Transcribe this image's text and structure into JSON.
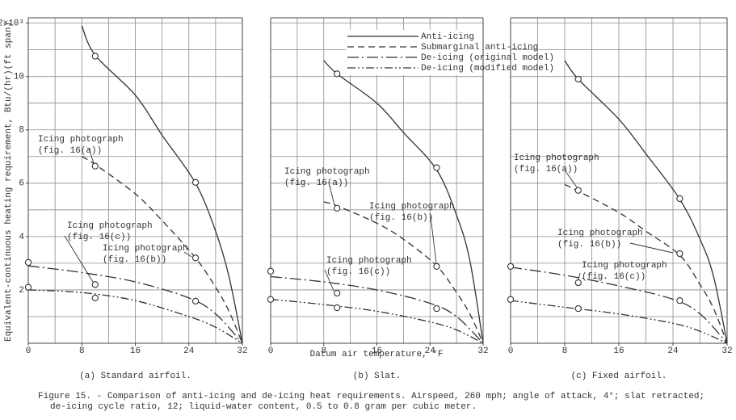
{
  "figure": {
    "y_label": "Equivalent-continuous heating requirement, Btu/(hr)(ft span)",
    "x_label": "Datum air temperature, °F",
    "caption": [
      "Figure 15. - Comparison of anti-icing and de-icing heat requirements.  Airspeed, 260 mph; angle of attack, 4°; slat retracted;",
      "de-icing cycle ratio, 12; liquid-water content, 0.5 to 0.8 gram per cubic meter."
    ]
  },
  "chart_data": [
    {
      "type": "line",
      "subtitle": "(a) Standard airfoil.",
      "xlim": [
        0,
        32
      ],
      "xticks": [
        0,
        8,
        16,
        24,
        32
      ],
      "xgrid": [
        4,
        8,
        12,
        16,
        20,
        24,
        28
      ],
      "ylim": [
        0,
        12.2
      ],
      "yticks": [
        2,
        4,
        6,
        8,
        10,
        {
          "value": 12,
          "label": "12×10³"
        }
      ],
      "ygrid": [
        1,
        2,
        3,
        4,
        5,
        6,
        7,
        8,
        9,
        10,
        11,
        12
      ],
      "series": [
        {
          "style": "solid",
          "x": [
            8,
            10,
            16,
            20,
            25,
            28,
            30,
            32
          ],
          "values": [
            11.9,
            10.8,
            9.3,
            7.8,
            6.0,
            4.2,
            2.5,
            0
          ]
        },
        {
          "style": "dashed",
          "x": [
            8,
            10,
            16,
            20,
            25,
            28,
            30,
            32
          ],
          "values": [
            7.0,
            6.7,
            5.6,
            4.6,
            3.2,
            2.1,
            1.2,
            0
          ]
        },
        {
          "style": "dash-dot",
          "x": [
            0,
            8,
            16,
            24,
            28,
            32
          ],
          "values": [
            2.9,
            2.65,
            2.3,
            1.7,
            1.1,
            0
          ]
        },
        {
          "style": "dash-dot-dot",
          "x": [
            0,
            8,
            16,
            24,
            28,
            32
          ],
          "values": [
            2.0,
            1.9,
            1.6,
            1.0,
            0.6,
            0
          ]
        },
        {
          "marker": "circle",
          "x": [
            10,
            25,
            10,
            25,
            0,
            10,
            25,
            0,
            10
          ],
          "values": [
            10.76,
            6.03,
            6.64,
            3.2,
            3.03,
            2.2,
            1.58,
            2.1,
            1.7
          ]
        }
      ],
      "annotations": [
        {
          "lines": [
            "Icing photograph",
            "(fig. 16(a))"
          ]
        },
        {
          "lines": [
            "Icing photograph",
            "(fig. 16(c))"
          ]
        },
        {
          "lines": [
            "Icing photograph",
            "(fig. 16(b))"
          ]
        }
      ]
    },
    {
      "type": "line",
      "subtitle": "(b) Slat.",
      "xlim": [
        0,
        32
      ],
      "xticks": [
        0,
        8,
        16,
        24,
        32
      ],
      "xgrid": [
        4,
        8,
        12,
        16,
        20,
        24,
        28
      ],
      "ylim": [
        0,
        12.2
      ],
      "ygrid": [
        1,
        2,
        3,
        4,
        5,
        6,
        7,
        8,
        9,
        10,
        11,
        12
      ],
      "legend": "top-right",
      "series": [
        {
          "name": "Anti-icing",
          "style": "solid",
          "x": [
            8,
            10,
            16,
            20,
            25,
            28,
            30,
            32
          ],
          "values": [
            10.6,
            10.1,
            9.0,
            7.9,
            6.5,
            4.8,
            3.1,
            0
          ]
        },
        {
          "name": "Submarginal anti-icing",
          "style": "dashed",
          "x": [
            8,
            10,
            16,
            20,
            25,
            28,
            30,
            32
          ],
          "values": [
            5.3,
            5.15,
            4.5,
            3.9,
            2.9,
            1.9,
            1.1,
            0
          ]
        },
        {
          "name": "De-icing (original model)",
          "style": "dash-dot",
          "x": [
            0,
            8,
            16,
            24,
            28,
            32
          ],
          "values": [
            2.5,
            2.3,
            2.0,
            1.5,
            1.0,
            0
          ]
        },
        {
          "name": "De-icing (modified model)",
          "style": "dash-dot-dot",
          "x": [
            0,
            8,
            16,
            24,
            28,
            32
          ],
          "values": [
            1.65,
            1.45,
            1.2,
            0.8,
            0.5,
            0
          ]
        },
        {
          "marker": "circle",
          "x": [
            10,
            25,
            10,
            25,
            0,
            10,
            0,
            10,
            25
          ],
          "values": [
            10.1,
            6.58,
            5.06,
            2.88,
            2.7,
            1.88,
            1.64,
            1.33,
            1.3
          ]
        }
      ],
      "annotations": [
        {
          "lines": [
            "Icing photograph",
            "(fig. 16(a))"
          ]
        },
        {
          "lines": [
            "Icing photograph",
            "(fig. 16(b))"
          ]
        },
        {
          "lines": [
            "Icing photograph",
            "(fig. 16(c))"
          ]
        }
      ]
    },
    {
      "type": "line",
      "subtitle": "(c) Fixed airfoil.",
      "xlim": [
        0,
        32
      ],
      "xticks": [
        0,
        8,
        16,
        24,
        32
      ],
      "xgrid": [
        4,
        8,
        12,
        16,
        20,
        24,
        28
      ],
      "ylim": [
        0,
        12.2
      ],
      "ygrid": [
        1,
        2,
        3,
        4,
        5,
        6,
        7,
        8,
        9,
        10,
        11,
        12
      ],
      "series": [
        {
          "style": "solid",
          "x": [
            8,
            10,
            16,
            20,
            25,
            28,
            30,
            32
          ],
          "values": [
            10.6,
            9.9,
            8.4,
            7.1,
            5.4,
            3.9,
            2.5,
            0
          ]
        },
        {
          "style": "dashed",
          "x": [
            8,
            10,
            16,
            20,
            25,
            28,
            30,
            32
          ],
          "values": [
            5.95,
            5.7,
            4.9,
            4.2,
            3.3,
            2.2,
            1.3,
            0
          ]
        },
        {
          "style": "dash-dot",
          "x": [
            0,
            8,
            16,
            24,
            28,
            32
          ],
          "values": [
            2.85,
            2.55,
            2.15,
            1.65,
            1.1,
            0
          ]
        },
        {
          "style": "dash-dot-dot",
          "x": [
            0,
            8,
            16,
            24,
            28,
            32
          ],
          "values": [
            1.6,
            1.35,
            1.1,
            0.75,
            0.45,
            0
          ]
        },
        {
          "marker": "circle",
          "x": [
            10,
            25,
            10,
            25,
            0,
            10,
            25,
            0,
            10
          ],
          "values": [
            9.9,
            5.42,
            5.73,
            3.36,
            2.88,
            2.27,
            1.6,
            1.64,
            1.3
          ]
        }
      ],
      "annotations": [
        {
          "lines": [
            "Icing photograph",
            "(fig. 16(a))"
          ]
        },
        {
          "lines": [
            "Icing photograph",
            "(fig. 16(b))"
          ]
        },
        {
          "lines": [
            "Icing photograph",
            "(fig. 16(c))"
          ]
        }
      ]
    }
  ]
}
